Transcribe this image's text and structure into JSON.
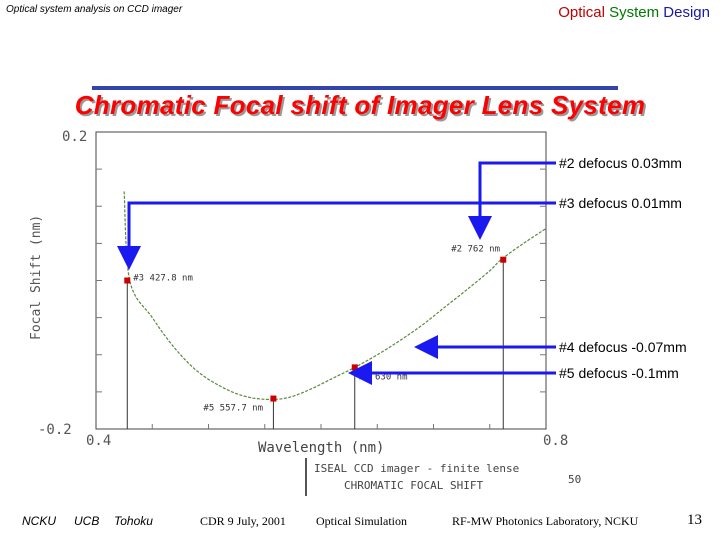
{
  "header": {
    "left_text": "Optical system analysis on CCD imager",
    "right_word1": "Optical",
    "right_word2": "System",
    "right_word3": "Design"
  },
  "slide_title": "Chromatic Focal shift of Imager Lens System",
  "colors": {
    "curve": "#5a8a3a",
    "marker": "#cc0000",
    "arrow": "#1a1af0",
    "title": "#ff0000"
  },
  "chart_data": {
    "type": "line",
    "title": "",
    "xlabel": "Wavelength (nm)",
    "ylabel": "Focal Shift (nm)",
    "x_tick_labels": [
      "0.4",
      "0.8"
    ],
    "y_tick_labels": [
      "0.2",
      "-0.2"
    ],
    "xlim": [
      0.4,
      0.8
    ],
    "ylim": [
      -0.2,
      0.2
    ],
    "grid": true,
    "series": [
      {
        "x": [
          0.425,
          0.43,
          0.45,
          0.47,
          0.49,
          0.51,
          0.53,
          0.55,
          0.57,
          0.59,
          0.61,
          0.63,
          0.65,
          0.67,
          0.69,
          0.71,
          0.73,
          0.75,
          0.76,
          0.78,
          0.8
        ],
        "values": [
          0.12,
          0.0,
          -0.05,
          -0.091,
          -0.122,
          -0.142,
          -0.155,
          -0.16,
          -0.158,
          -0.147,
          -0.132,
          -0.117,
          -0.1,
          -0.081,
          -0.06,
          -0.036,
          -0.012,
          0.013,
          0.028,
          0.05,
          0.07
        ]
      }
    ],
    "markers": [
      {
        "label": "#3 427.8 nm",
        "x": 0.4278,
        "y": 0.0
      },
      {
        "label": "#5 557.7 nm",
        "x": 0.5577,
        "y": -0.159
      },
      {
        "label": "#4 630 nm",
        "x": 0.63,
        "y": -0.117
      },
      {
        "label": "#2 762 nm",
        "x": 0.762,
        "y": 0.028
      }
    ],
    "annotations": [
      {
        "text": "#2 defocus 0.03mm"
      },
      {
        "text": "#3 defocus 0.01mm"
      },
      {
        "text": "#4 defocus -0.07mm"
      },
      {
        "text": "#5 defocus -0.1mm"
      }
    ],
    "caption_line1": "ISEAL CCD imager - finite lense",
    "caption_line2": "CHROMATIC FOCAL SHIFT",
    "caption_extra": "50"
  },
  "footer": {
    "left1": "NCKU",
    "left2": "UCB",
    "left3": "Tohoku",
    "date": "CDR 9 July, 2001",
    "topic": "Optical Simulation",
    "lab": "RF-MW Photonics Laboratory, NCKU",
    "page": "13"
  }
}
